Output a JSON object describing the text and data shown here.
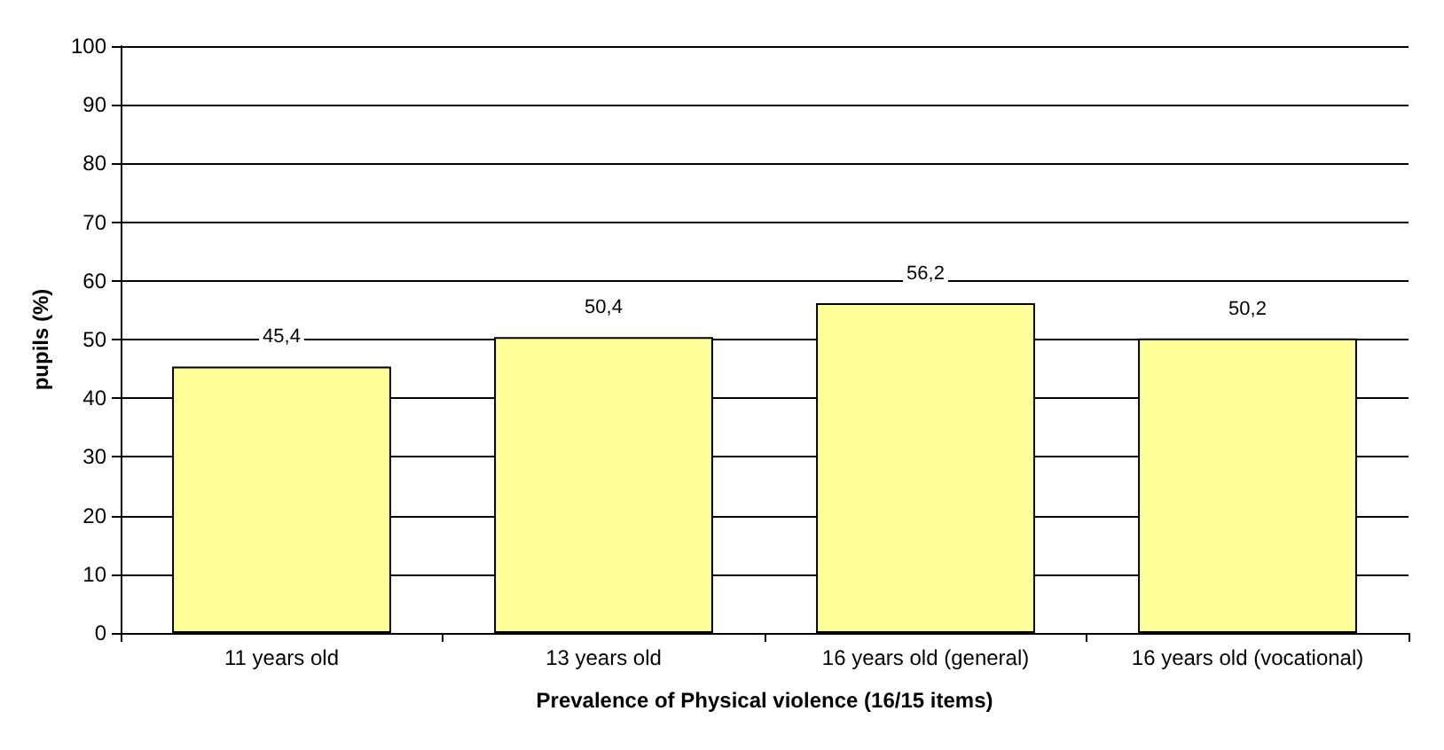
{
  "chart_data": {
    "type": "bar",
    "xlabel": "Prevalence of Physical violence (16/15 items)",
    "ylabel": "pupils (%)",
    "categories": [
      "11 years old",
      "13 years old",
      "16 years old (general)",
      "16 years old (vocational)"
    ],
    "values": [
      45.4,
      50.4,
      56.2,
      50.2
    ],
    "value_labels": [
      "45,4",
      "50,4",
      "56,2",
      "50,2"
    ],
    "color": "#ffff99",
    "ylim": [
      0,
      100
    ],
    "yticks": [
      0,
      10,
      20,
      30,
      40,
      50,
      60,
      70,
      80,
      90,
      100
    ],
    "grid": "y"
  }
}
